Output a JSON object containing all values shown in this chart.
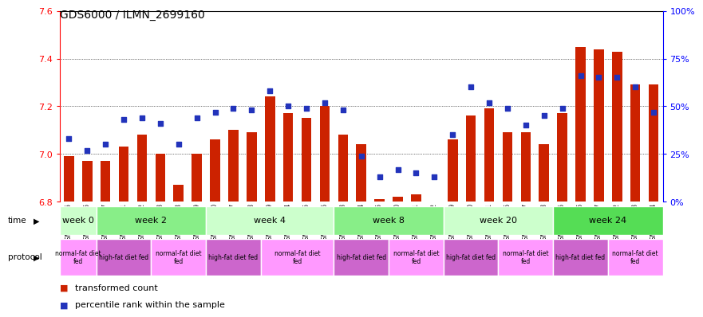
{
  "title": "GDS6000 / ILMN_2699160",
  "samples": [
    "GSM1577825",
    "GSM1577826",
    "GSM1577827",
    "GSM1577831",
    "GSM1577832",
    "GSM1577833",
    "GSM1577828",
    "GSM1577829",
    "GSM1577830",
    "GSM1577837",
    "GSM1577838",
    "GSM1577839",
    "GSM1577834",
    "GSM1577835",
    "GSM1577836",
    "GSM1577843",
    "GSM1577844",
    "GSM1577845",
    "GSM1577840",
    "GSM1577841",
    "GSM1577842",
    "GSM1577849",
    "GSM1577850",
    "GSM1577851",
    "GSM1577846",
    "GSM1577847",
    "GSM1577848",
    "GSM1577855",
    "GSM1577856",
    "GSM1577857",
    "GSM1577852",
    "GSM1577853",
    "GSM1577854"
  ],
  "bar_values": [
    6.99,
    6.97,
    6.97,
    7.03,
    7.08,
    7.0,
    6.87,
    7.0,
    7.06,
    7.1,
    7.09,
    7.24,
    7.17,
    7.15,
    7.2,
    7.08,
    7.04,
    6.81,
    6.82,
    6.83,
    6.8,
    7.06,
    7.16,
    7.19,
    7.09,
    7.09,
    7.04,
    7.17,
    7.45,
    7.44,
    7.43,
    7.29,
    7.29
  ],
  "dot_values": [
    33,
    27,
    30,
    43,
    44,
    41,
    30,
    44,
    47,
    49,
    48,
    58,
    50,
    49,
    52,
    48,
    24,
    13,
    17,
    15,
    13,
    35,
    60,
    52,
    49,
    40,
    45,
    49,
    66,
    65,
    65,
    60,
    47
  ],
  "ylim_left": [
    6.8,
    7.6
  ],
  "ylim_right": [
    0,
    100
  ],
  "yticks_left": [
    6.8,
    7.0,
    7.2,
    7.4,
    7.6
  ],
  "yticks_right": [
    0,
    25,
    50,
    75,
    100
  ],
  "bar_color": "#CC2200",
  "dot_color": "#2233BB",
  "bg_color": "#FFFFFF",
  "time_groups": [
    {
      "label": "week 0",
      "start": 0,
      "end": 2,
      "color": "#CCFFCC"
    },
    {
      "label": "week 2",
      "start": 2,
      "end": 8,
      "color": "#88EE88"
    },
    {
      "label": "week 4",
      "start": 8,
      "end": 15,
      "color": "#CCFFCC"
    },
    {
      "label": "week 8",
      "start": 15,
      "end": 21,
      "color": "#88EE88"
    },
    {
      "label": "week 20",
      "start": 21,
      "end": 27,
      "color": "#CCFFCC"
    },
    {
      "label": "week 24",
      "start": 27,
      "end": 33,
      "color": "#55DD55"
    }
  ],
  "protocol_groups": [
    {
      "label": "normal-fat diet\nfed",
      "start": 0,
      "end": 2,
      "color": "#FF99FF"
    },
    {
      "label": "high-fat diet fed",
      "start": 2,
      "end": 5,
      "color": "#CC66CC"
    },
    {
      "label": "normal-fat diet\nfed",
      "start": 5,
      "end": 8,
      "color": "#FF99FF"
    },
    {
      "label": "high-fat diet fed",
      "start": 8,
      "end": 11,
      "color": "#CC66CC"
    },
    {
      "label": "normal-fat diet\nfed",
      "start": 11,
      "end": 15,
      "color": "#FF99FF"
    },
    {
      "label": "high-fat diet fed",
      "start": 15,
      "end": 18,
      "color": "#CC66CC"
    },
    {
      "label": "normal-fat diet\nfed",
      "start": 18,
      "end": 21,
      "color": "#FF99FF"
    },
    {
      "label": "high-fat diet fed",
      "start": 21,
      "end": 24,
      "color": "#CC66CC"
    },
    {
      "label": "normal-fat diet\nfed",
      "start": 24,
      "end": 27,
      "color": "#FF99FF"
    },
    {
      "label": "high-fat diet fed",
      "start": 27,
      "end": 30,
      "color": "#CC66CC"
    },
    {
      "label": "normal-fat diet\nfed",
      "start": 30,
      "end": 33,
      "color": "#FF99FF"
    }
  ],
  "legend_items": [
    {
      "label": "transformed count",
      "color": "#CC2200"
    },
    {
      "label": "percentile rank within the sample",
      "color": "#2233BB"
    }
  ],
  "label_bg": "#DDDDDD",
  "label_border": "#999999"
}
